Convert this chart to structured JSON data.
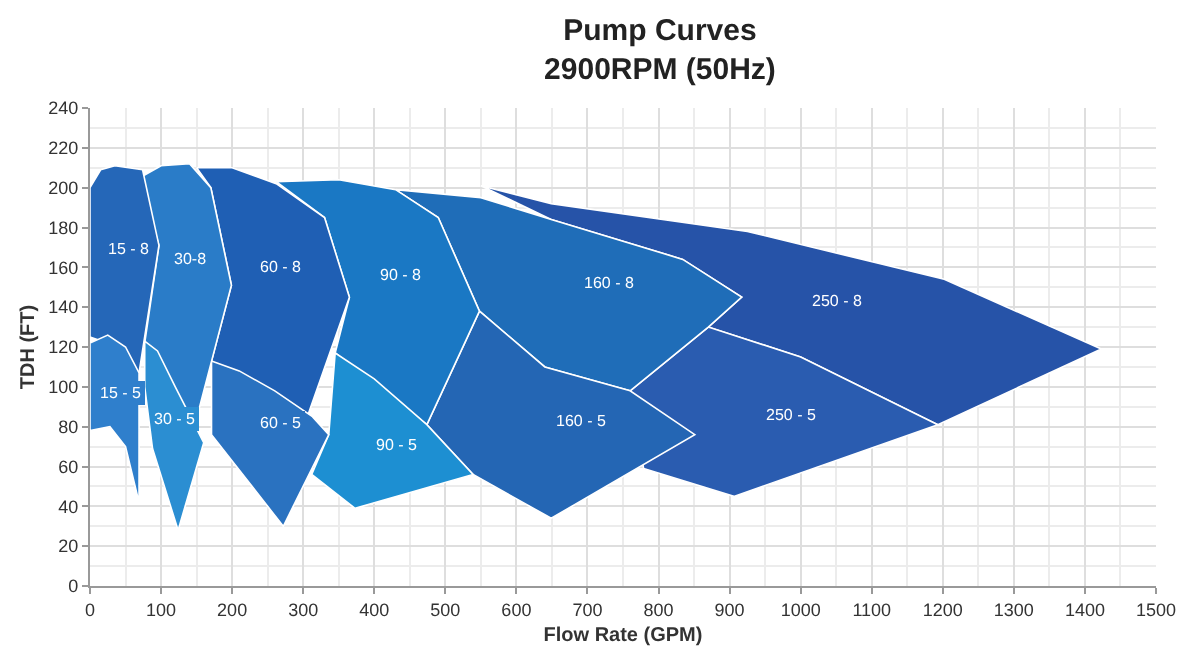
{
  "chart_data": {
    "type": "area",
    "title": "Pump Curves",
    "subtitle": "2900RPM (50Hz)",
    "xlabel": "Flow Rate (GPM)",
    "ylabel": "TDH (FT)",
    "xlim": [
      0,
      1500
    ],
    "xticks": [
      0,
      100,
      200,
      300,
      400,
      500,
      600,
      700,
      800,
      900,
      1000,
      1100,
      1200,
      1300,
      1400,
      1500
    ],
    "ylim": [
      0,
      240
    ],
    "yticks": [
      0,
      20,
      40,
      60,
      80,
      100,
      120,
      140,
      160,
      180,
      200,
      220,
      240
    ],
    "grid": true,
    "legend": false,
    "series": [
      {
        "name": "250 - 8",
        "color": "#2653a8",
        "x": [
          550,
          649,
          925,
          1202,
          1423,
          1193,
          1000,
          870,
          917,
          834,
          649
        ],
        "values": [
          201,
          192,
          178,
          154,
          119,
          81,
          115,
          130,
          145,
          164,
          184
        ]
      },
      {
        "name": "250 - 5",
        "color": "#2a5cb0",
        "x": [
          760,
          870,
          1000,
          1193,
          906,
          779
        ],
        "values": [
          98,
          130,
          115,
          81,
          45,
          59
        ]
      },
      {
        "name": "160 - 8",
        "color": "#1f6db8",
        "x": [
          430,
          550,
          649,
          834,
          917,
          870,
          760,
          640,
          548,
          490
        ],
        "values": [
          199,
          195,
          184,
          164,
          145,
          130,
          98,
          110,
          138,
          185
        ]
      },
      {
        "name": "160 - 5",
        "color": "#2466b4",
        "x": [
          474,
          548,
          640,
          760,
          851,
          649,
          539
        ],
        "values": [
          81,
          138,
          110,
          98,
          76,
          34,
          56
        ]
      },
      {
        "name": "90 - 8",
        "color": "#1a78c4",
        "x": [
          262,
          350,
          430,
          490,
          548,
          474,
          345,
          365,
          330
        ],
        "values": [
          203,
          204,
          199,
          185,
          138,
          81,
          117,
          145,
          185
        ]
      },
      {
        "name": "90 - 5",
        "color": "#1d8fd2",
        "x": [
          345,
          400,
          474,
          539,
          373,
          312,
          336
        ],
        "values": [
          117,
          104,
          81,
          56,
          39,
          56,
          76
        ]
      },
      {
        "name": "60 - 8",
        "color": "#1f5fb4",
        "x": [
          150,
          200,
          262,
          330,
          365,
          295,
          171,
          199,
          170
        ],
        "values": [
          210,
          210,
          202,
          185,
          145,
          74,
          113,
          151,
          200
        ]
      },
      {
        "name": "60 - 5",
        "color": "#2a72c0",
        "x": [
          171,
          210,
          260,
          313,
          336,
          272,
          171
        ],
        "values": [
          113,
          108,
          98,
          85,
          76,
          30,
          76
        ]
      },
      {
        "name": "30-8",
        "color": "#2a7cc8",
        "x": [
          70,
          100,
          140,
          170,
          199,
          144,
          77,
          97
        ],
        "values": [
          205,
          211,
          212,
          200,
          151,
          76,
          122,
          171
        ]
      },
      {
        "name": "30 - 5",
        "color": "#2b8ed2",
        "x": [
          77,
          95,
          120,
          160,
          124,
          88,
          77
        ],
        "values": [
          123,
          118,
          100,
          72,
          28,
          69,
          100
        ]
      },
      {
        "name": "15 - 8",
        "color": "#2567b8",
        "x": [
          0,
          15,
          35,
          74,
          97,
          69,
          40,
          0
        ],
        "values": [
          200,
          209,
          211,
          209,
          171,
          107,
          120,
          125
        ]
      },
      {
        "name": "15 - 5",
        "color": "#2f7fcc",
        "x": [
          0,
          25,
          50,
          69,
          69,
          50,
          28,
          0
        ],
        "values": [
          122,
          126,
          120,
          107,
          42,
          70,
          80,
          78
        ]
      }
    ]
  }
}
